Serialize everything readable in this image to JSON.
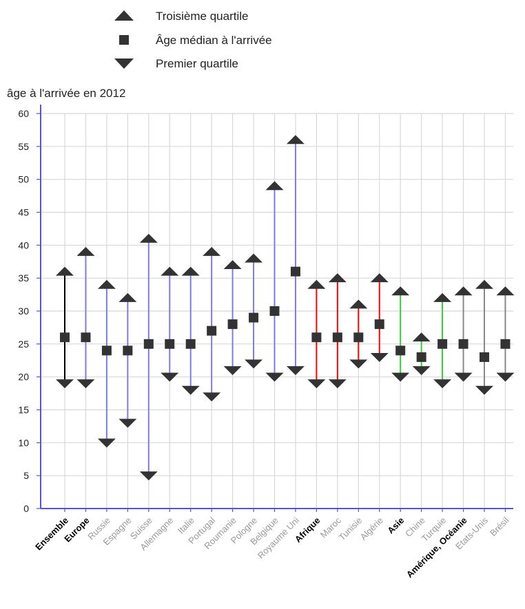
{
  "chart_data": {
    "type": "range",
    "ylabel": "âge à l'arrivée en 2012",
    "ylim": [
      0,
      60
    ],
    "yticks": [
      0,
      5,
      10,
      15,
      20,
      25,
      30,
      35,
      40,
      45,
      50,
      55,
      60
    ],
    "grid": true,
    "legend_position": "top",
    "legend": [
      {
        "label": "Troisième quartile",
        "marker": "triangle-up"
      },
      {
        "label": "Âge médian à l'arrivée",
        "marker": "square"
      },
      {
        "label": "Premier quartile",
        "marker": "triangle-down"
      }
    ],
    "categories": [
      {
        "label": "Ensemble",
        "group": true,
        "q1": 19,
        "median": 26,
        "q3": 36,
        "color": "#000000"
      },
      {
        "label": "Europe",
        "group": true,
        "q1": 19,
        "median": 26,
        "q3": 39,
        "color": "#7b7bea"
      },
      {
        "label": "Russie",
        "group": false,
        "q1": 10,
        "median": 24,
        "q3": 34,
        "color": "#7b7bea"
      },
      {
        "label": "Espagne",
        "group": false,
        "q1": 13,
        "median": 24,
        "q3": 32,
        "color": "#7b7bea"
      },
      {
        "label": "Suisse",
        "group": false,
        "q1": 5,
        "median": 25,
        "q3": 41,
        "color": "#7b7bea"
      },
      {
        "label": "Allemagne",
        "group": false,
        "q1": 20,
        "median": 25,
        "q3": 36,
        "color": "#7b7bea"
      },
      {
        "label": "Italie",
        "group": false,
        "q1": 18,
        "median": 25,
        "q3": 36,
        "color": "#7b7bea"
      },
      {
        "label": "Portugal",
        "group": false,
        "q1": 17,
        "median": 27,
        "q3": 39,
        "color": "#7b7bea"
      },
      {
        "label": "Roumanie",
        "group": false,
        "q1": 21,
        "median": 28,
        "q3": 37,
        "color": "#7b7bea"
      },
      {
        "label": "Pologne",
        "group": false,
        "q1": 22,
        "median": 29,
        "q3": 38,
        "color": "#7b7bea"
      },
      {
        "label": "Belgique",
        "group": false,
        "q1": 20,
        "median": 30,
        "q3": 49,
        "color": "#7b7bea"
      },
      {
        "label": "Royaume Uni",
        "group": false,
        "q1": 21,
        "median": 36,
        "q3": 56,
        "color": "#7b7bea"
      },
      {
        "label": "Afrique",
        "group": true,
        "q1": 19,
        "median": 26,
        "q3": 34,
        "color": "#ff0000"
      },
      {
        "label": "Maroc",
        "group": false,
        "q1": 19,
        "median": 26,
        "q3": 35,
        "color": "#ff0000"
      },
      {
        "label": "Tunisie",
        "group": false,
        "q1": 22,
        "median": 26,
        "q3": 31,
        "color": "#ff0000"
      },
      {
        "label": "Algérie",
        "group": false,
        "q1": 23,
        "median": 28,
        "q3": 35,
        "color": "#ff0000"
      },
      {
        "label": "Asie",
        "group": true,
        "q1": 20,
        "median": 24,
        "q3": 33,
        "color": "#33cc33"
      },
      {
        "label": "Chine",
        "group": false,
        "q1": 21,
        "median": 23,
        "q3": 26,
        "color": "#33cc33"
      },
      {
        "label": "Turquie",
        "group": false,
        "q1": 19,
        "median": 25,
        "q3": 32,
        "color": "#33cc33"
      },
      {
        "label": "Amérique, Océanie",
        "group": true,
        "q1": 20,
        "median": 25,
        "q3": 33,
        "color": "#888888"
      },
      {
        "label": "Etats-Unis",
        "group": false,
        "q1": 18,
        "median": 23,
        "q3": 34,
        "color": "#888888"
      },
      {
        "label": "Brésil",
        "group": false,
        "q1": 20,
        "median": 25,
        "q3": 33,
        "color": "#888888"
      }
    ]
  }
}
